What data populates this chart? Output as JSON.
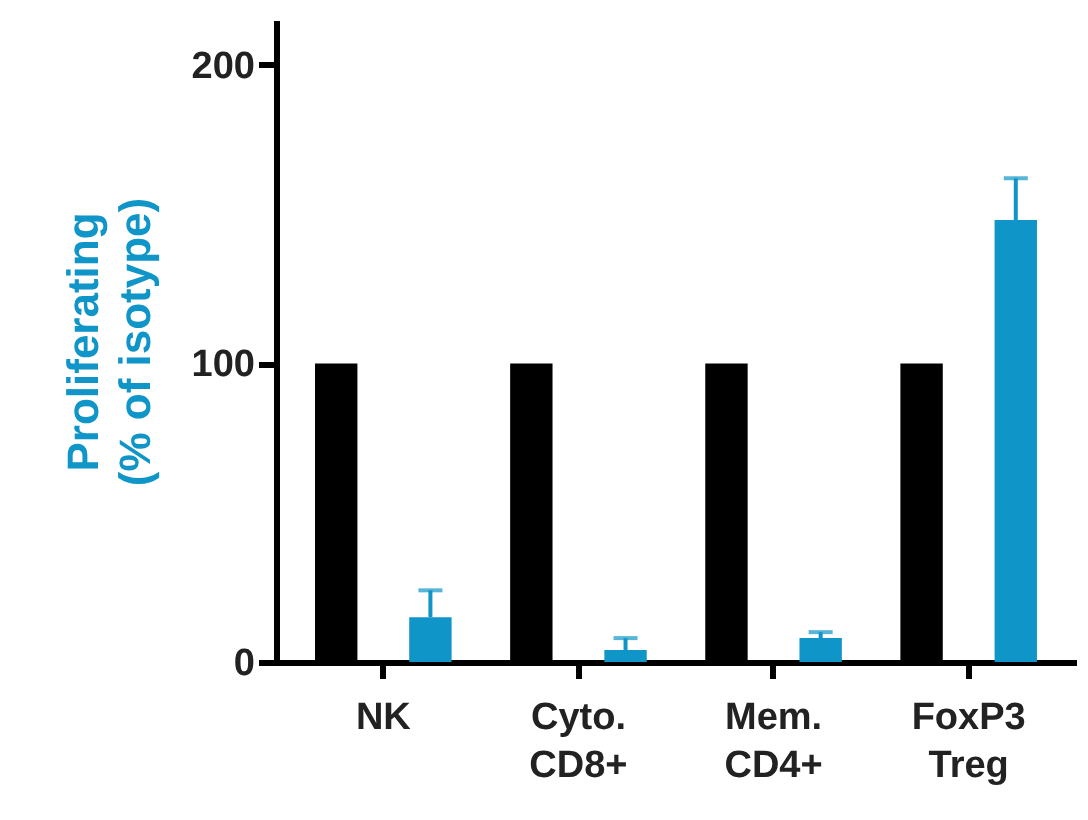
{
  "chart_data": {
    "type": "bar",
    "ylabel": "Proliferating\n(% of isotype)",
    "categories": [
      "NK",
      "Cyto.\nCD8+",
      "Mem.\nCD4+",
      "FoxP3\nTreg"
    ],
    "series": [
      {
        "color": "#000000",
        "values": [
          100,
          100,
          100,
          100
        ]
      },
      {
        "color": "#0f95c8",
        "values": [
          15,
          4,
          8,
          148
        ],
        "errors": [
          [
            15,
            24
          ],
          [
            4,
            8
          ],
          [
            8,
            10
          ],
          [
            148,
            162
          ]
        ]
      }
    ],
    "ylim": [
      0,
      215
    ],
    "yticks": [
      0,
      100,
      200
    ],
    "grid": false
  }
}
